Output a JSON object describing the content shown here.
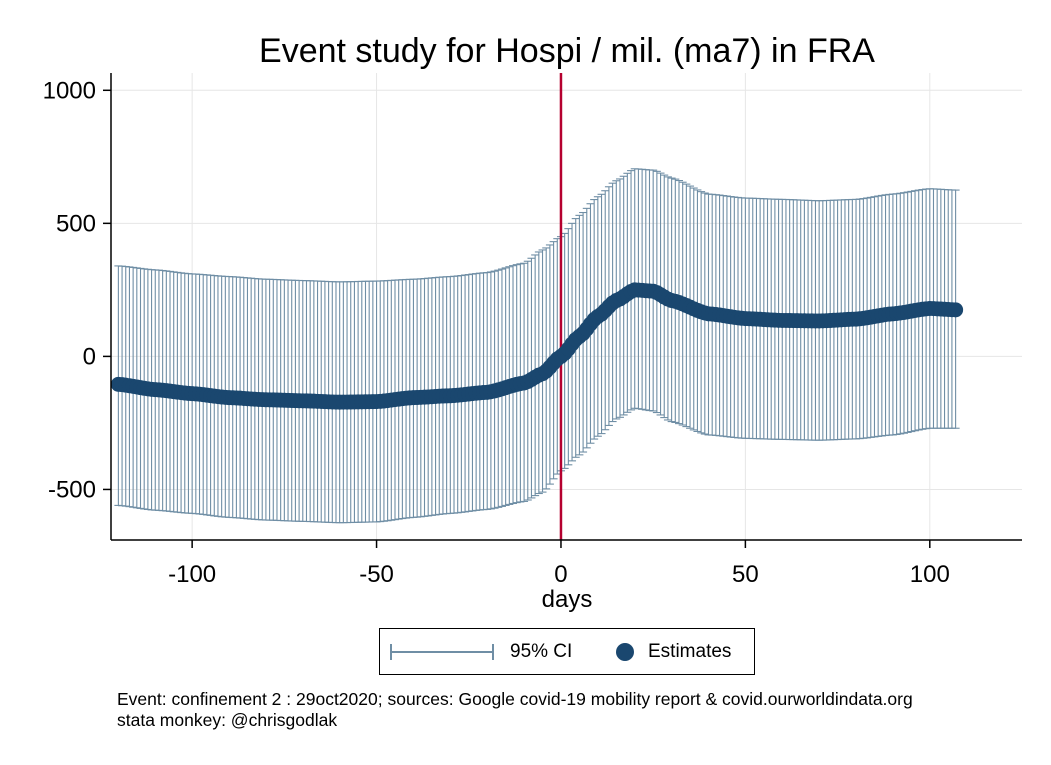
{
  "chart_data": {
    "type": "scatter",
    "title": "Event study for Hospi / mil. (ma7) in FRA",
    "xlabel": "days",
    "ylabel": "",
    "xlim": [
      -122,
      125
    ],
    "ylim": [
      -690,
      1065
    ],
    "x_ticks": [
      -100,
      -50,
      0,
      50,
      100
    ],
    "x_tick_labels": [
      "-100",
      "-50",
      "0",
      "50",
      "100"
    ],
    "y_ticks": [
      -500,
      0,
      500,
      1000
    ],
    "y_tick_labels": [
      "-500",
      "0",
      "500",
      "1000"
    ],
    "grid": true,
    "event_line": {
      "x": 0,
      "color": "#b5002f"
    },
    "x_range": [
      -120,
      107
    ],
    "series": [
      {
        "name": "Estimates",
        "color": "#1a476f",
        "anchors": [
          [
            -120,
            -105
          ],
          [
            -110,
            -125
          ],
          [
            -100,
            -140
          ],
          [
            -90,
            -155
          ],
          [
            -80,
            -163
          ],
          [
            -70,
            -167
          ],
          [
            -60,
            -172
          ],
          [
            -50,
            -170
          ],
          [
            -40,
            -155
          ],
          [
            -30,
            -148
          ],
          [
            -20,
            -135
          ],
          [
            -10,
            -100
          ],
          [
            -5,
            -65
          ],
          [
            0,
            0
          ],
          [
            5,
            75
          ],
          [
            10,
            150
          ],
          [
            15,
            210
          ],
          [
            20,
            250
          ],
          [
            25,
            245
          ],
          [
            30,
            210
          ],
          [
            40,
            160
          ],
          [
            50,
            142
          ],
          [
            60,
            135
          ],
          [
            70,
            133
          ],
          [
            80,
            140
          ],
          [
            90,
            160
          ],
          [
            100,
            180
          ],
          [
            107,
            175
          ]
        ]
      },
      {
        "name": "95% CI",
        "color": "#6f8ea5",
        "upper": [
          [
            -120,
            340
          ],
          [
            -110,
            325
          ],
          [
            -100,
            310
          ],
          [
            -90,
            300
          ],
          [
            -80,
            290
          ],
          [
            -70,
            285
          ],
          [
            -60,
            280
          ],
          [
            -50,
            283
          ],
          [
            -40,
            290
          ],
          [
            -30,
            300
          ],
          [
            -20,
            315
          ],
          [
            -10,
            350
          ],
          [
            -5,
            400
          ],
          [
            0,
            450
          ],
          [
            5,
            530
          ],
          [
            10,
            600
          ],
          [
            15,
            660
          ],
          [
            20,
            705
          ],
          [
            25,
            700
          ],
          [
            30,
            670
          ],
          [
            40,
            610
          ],
          [
            50,
            595
          ],
          [
            60,
            590
          ],
          [
            70,
            585
          ],
          [
            80,
            590
          ],
          [
            90,
            610
          ],
          [
            100,
            630
          ],
          [
            107,
            625
          ]
        ],
        "lower": [
          [
            -120,
            -560
          ],
          [
            -110,
            -578
          ],
          [
            -100,
            -590
          ],
          [
            -90,
            -605
          ],
          [
            -80,
            -615
          ],
          [
            -70,
            -620
          ],
          [
            -60,
            -625
          ],
          [
            -50,
            -622
          ],
          [
            -40,
            -605
          ],
          [
            -30,
            -590
          ],
          [
            -20,
            -575
          ],
          [
            -10,
            -545
          ],
          [
            -5,
            -510
          ],
          [
            0,
            -430
          ],
          [
            5,
            -370
          ],
          [
            10,
            -300
          ],
          [
            15,
            -235
          ],
          [
            20,
            -195
          ],
          [
            25,
            -205
          ],
          [
            30,
            -245
          ],
          [
            40,
            -295
          ],
          [
            50,
            -308
          ],
          [
            60,
            -312
          ],
          [
            70,
            -315
          ],
          [
            80,
            -310
          ],
          [
            90,
            -295
          ],
          [
            100,
            -270
          ],
          [
            107,
            -270
          ]
        ]
      }
    ]
  },
  "legend": {
    "ci_label": "95% CI",
    "estimates_label": "Estimates"
  },
  "notes": {
    "line1": "Event: confinement 2 : 29oct2020; sources: Google covid-19 mobility report & covid.ourworldindata.org",
    "line2": "stata monkey: @chrisgodlak"
  }
}
